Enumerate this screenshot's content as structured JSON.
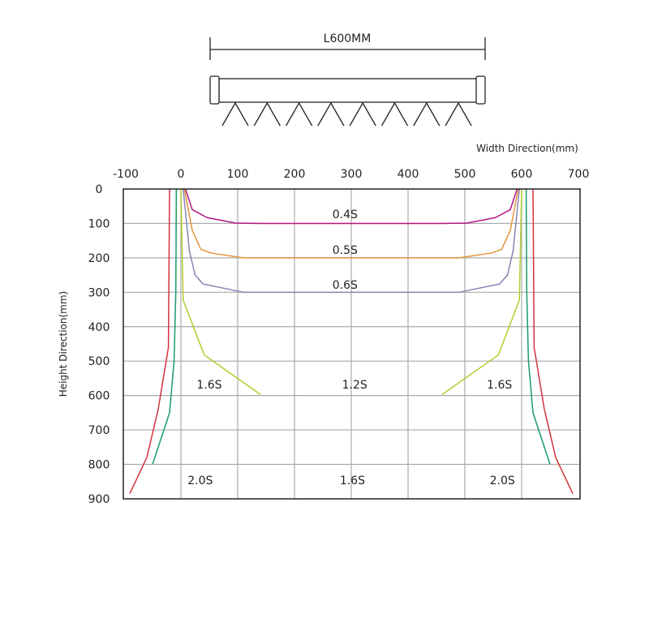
{
  "header": {
    "length_label": "L600MM",
    "nozzle_count": 8
  },
  "chart_data": {
    "type": "line",
    "xlabel": "Width Direction(mm)",
    "ylabel": "Height Direction(mm)",
    "xlim": [
      -100,
      700
    ],
    "ylim": [
      0,
      900
    ],
    "y_inverted": true,
    "x_ticks": [
      "-100",
      "0",
      "100",
      "200",
      "300",
      "400",
      "500",
      "600",
      "700"
    ],
    "y_ticks": [
      "0",
      "100",
      "200",
      "300",
      "400",
      "500",
      "600",
      "700",
      "800",
      "900"
    ],
    "grid": true,
    "series": [
      {
        "name": "0.4S",
        "color": "#b0177f",
        "points": [
          [
            8,
            0
          ],
          [
            20,
            60
          ],
          [
            46,
            83
          ],
          [
            96,
            99
          ],
          [
            140,
            100
          ],
          [
            460,
            100
          ],
          [
            504,
            99
          ],
          [
            554,
            83
          ],
          [
            580,
            60
          ],
          [
            592,
            0
          ]
        ]
      },
      {
        "name": "0.5S",
        "color": "#e0953a",
        "points": [
          [
            6,
            0
          ],
          [
            20,
            120
          ],
          [
            35,
            175
          ],
          [
            53,
            186
          ],
          [
            110,
            200
          ],
          [
            490,
            200
          ],
          [
            547,
            186
          ],
          [
            565,
            175
          ],
          [
            580,
            120
          ],
          [
            594,
            0
          ]
        ]
      },
      {
        "name": "0.6S",
        "color": "#8585b5",
        "points": [
          [
            4,
            0
          ],
          [
            15,
            180
          ],
          [
            25,
            250
          ],
          [
            39,
            276
          ],
          [
            110,
            300
          ],
          [
            490,
            300
          ],
          [
            561,
            276
          ],
          [
            575,
            250
          ],
          [
            585,
            180
          ],
          [
            596,
            0
          ]
        ]
      },
      {
        "name": "1.2S/1.6S",
        "color": "#b5cc2e",
        "points_left": [
          [
            0,
            0
          ],
          [
            4,
            323
          ],
          [
            41,
            482
          ],
          [
            140,
            597
          ]
        ],
        "points_right": [
          [
            600,
            0
          ],
          [
            596,
            323
          ],
          [
            559,
            482
          ],
          [
            460,
            597
          ]
        ]
      },
      {
        "name": "1.6S/2.0S green",
        "color": "#1a9a6a",
        "points_left": [
          [
            -8,
            0
          ],
          [
            -9,
            300
          ],
          [
            -12,
            500
          ],
          [
            -20,
            650
          ],
          [
            -50,
            800
          ]
        ],
        "points_right": [
          [
            608,
            0
          ],
          [
            609,
            300
          ],
          [
            612,
            500
          ],
          [
            620,
            650
          ],
          [
            650,
            800
          ]
        ]
      },
      {
        "name": "2.0S red",
        "color": "#d0343a",
        "points_left": [
          [
            -20,
            0
          ],
          [
            -22,
            460
          ],
          [
            -40,
            640
          ],
          [
            -60,
            780
          ],
          [
            -90,
            885
          ]
        ],
        "points_right": [
          [
            620,
            0
          ],
          [
            622,
            460
          ],
          [
            640,
            640
          ],
          [
            660,
            780
          ],
          [
            690,
            885
          ]
        ]
      }
    ],
    "annotations": [
      {
        "text": "0.4S",
        "x": 289,
        "y": 73
      },
      {
        "text": "0.5S",
        "x": 289,
        "y": 177
      },
      {
        "text": "0.6S",
        "x": 289,
        "y": 278
      },
      {
        "text": "1.6S",
        "x": 50,
        "y": 568
      },
      {
        "text": "1.2S",
        "x": 306,
        "y": 568
      },
      {
        "text": "1.6S",
        "x": 561,
        "y": 568
      },
      {
        "text": "2.0S",
        "x": 34,
        "y": 846
      },
      {
        "text": "1.6S",
        "x": 302,
        "y": 846
      },
      {
        "text": "2.0S",
        "x": 566,
        "y": 846
      }
    ]
  }
}
